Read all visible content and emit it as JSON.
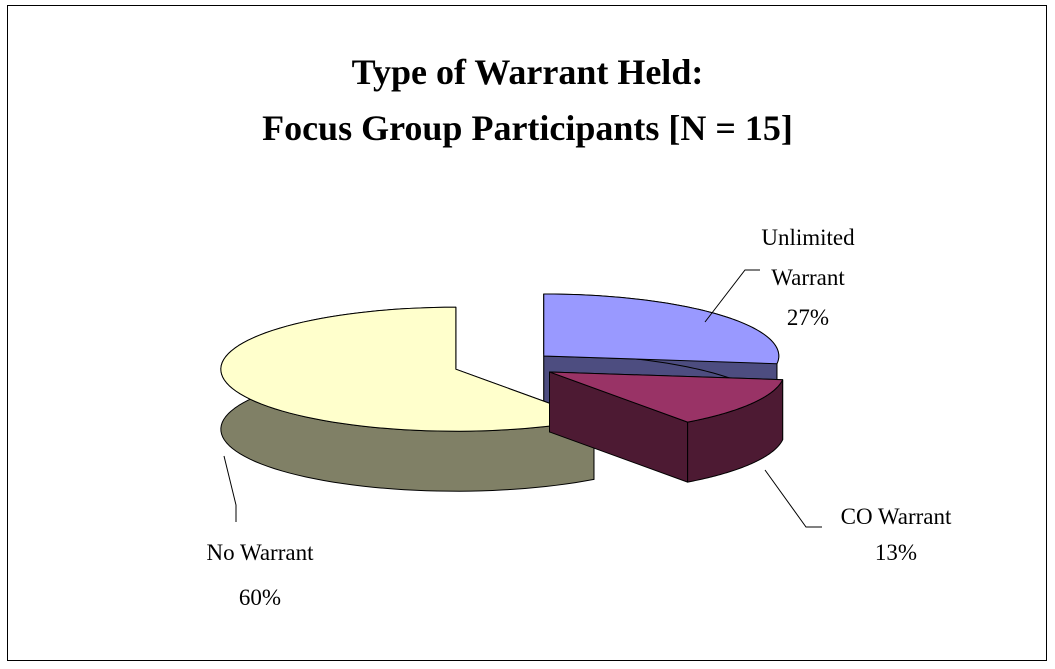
{
  "chart_data": {
    "type": "pie",
    "title": [
      "Type of Warrant Held:",
      "Focus Group Participants [N = 15]"
    ],
    "categories": [
      "Unlimited Warrant",
      "CO Warrant",
      "No Warrant"
    ],
    "values": [
      27,
      13,
      60
    ],
    "value_labels": [
      "27%",
      "13%",
      "60%"
    ],
    "colors": [
      "#9999ff",
      "#993366",
      "#ffffcc"
    ],
    "side_colors": [
      "#4d4d80",
      "#4d1a33",
      "#808066"
    ]
  }
}
